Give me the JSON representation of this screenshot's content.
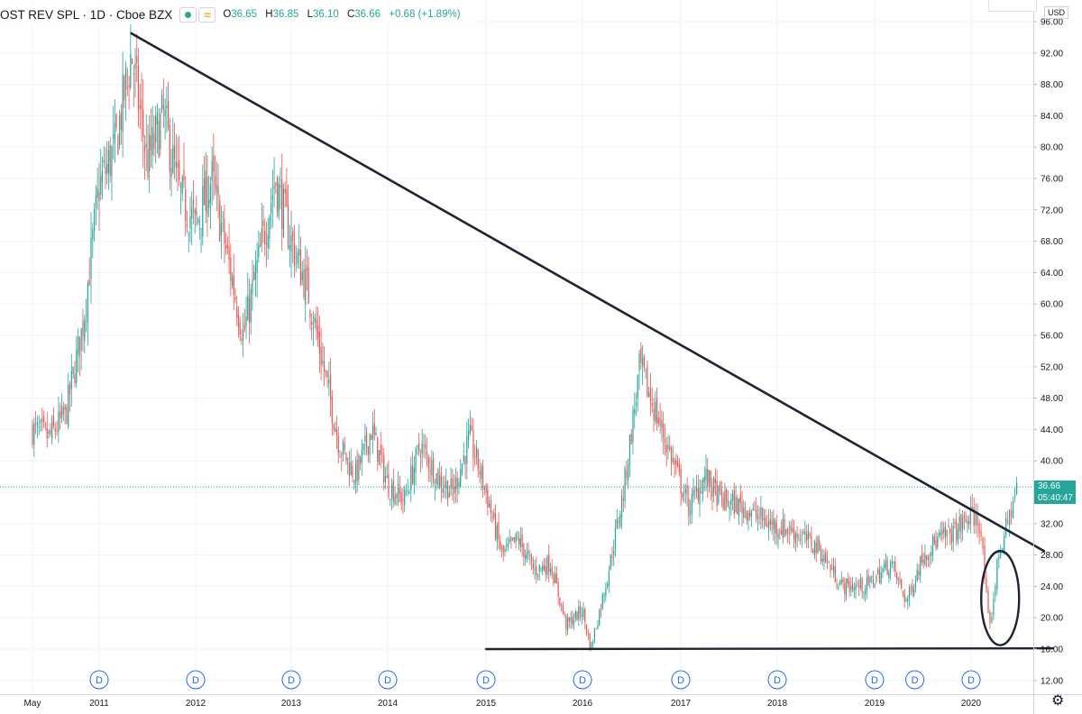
{
  "legend": {
    "symbol": "OST REV SPL · 1D · Cboe BZX",
    "open_label": "O",
    "open": "36.65",
    "high_label": "H",
    "high": "36.85",
    "low_label": "L",
    "low": "36.10",
    "close_label": "C",
    "close": "36.66",
    "change": "+0.68 (+1.89%)"
  },
  "price_axis": {
    "currency": "USD",
    "last_price": "36.66",
    "countdown": "05:40:47"
  },
  "icons": {
    "settings": "gear-icon",
    "indicator": "dot-icon",
    "compare": "waves-icon"
  },
  "colors": {
    "up": "#26a69a",
    "down": "#ef5350",
    "trendline": "#1e2433",
    "grid": "#f0f3fa",
    "accent": "#2962ff"
  },
  "chart_data": {
    "type": "candlestick",
    "title": "",
    "xlabel": "",
    "ylabel": "",
    "ylim": [
      12,
      98
    ],
    "x_ticks": [
      "May",
      "2011",
      "2012",
      "2013",
      "2014",
      "2015",
      "2016",
      "2017",
      "2018",
      "2019",
      "2020"
    ],
    "y_ticks": [
      "12.00",
      "16.00",
      "20.00",
      "24.00",
      "28.00",
      "32.00",
      "36.00",
      "40.00",
      "44.00",
      "48.00",
      "52.00",
      "56.00",
      "60.00",
      "64.00",
      "68.00",
      "72.00",
      "76.00",
      "80.00",
      "84.00",
      "88.00",
      "92.00",
      "96.00"
    ],
    "series": [
      {
        "values_close_approx": [
          {
            "date": "2010-05",
            "close": 44
          },
          {
            "date": "2010-07",
            "close": 43
          },
          {
            "date": "2010-09",
            "close": 46
          },
          {
            "date": "2010-11",
            "close": 57
          },
          {
            "date": "2011-01",
            "close": 75
          },
          {
            "date": "2011-03",
            "close": 80
          },
          {
            "date": "2011-05",
            "close": 92
          },
          {
            "date": "2011-07",
            "close": 78
          },
          {
            "date": "2011-09",
            "close": 84
          },
          {
            "date": "2011-11",
            "close": 74
          },
          {
            "date": "2012-01",
            "close": 70
          },
          {
            "date": "2012-03",
            "close": 76
          },
          {
            "date": "2012-05",
            "close": 66
          },
          {
            "date": "2012-07",
            "close": 56
          },
          {
            "date": "2012-09",
            "close": 66
          },
          {
            "date": "2012-11",
            "close": 76
          },
          {
            "date": "2013-01",
            "close": 68
          },
          {
            "date": "2013-03",
            "close": 62
          },
          {
            "date": "2013-05",
            "close": 52
          },
          {
            "date": "2013-07",
            "close": 42
          },
          {
            "date": "2013-09",
            "close": 38
          },
          {
            "date": "2013-11",
            "close": 44
          },
          {
            "date": "2014-01",
            "close": 37
          },
          {
            "date": "2014-03",
            "close": 35
          },
          {
            "date": "2014-05",
            "close": 42
          },
          {
            "date": "2014-07",
            "close": 38
          },
          {
            "date": "2014-09",
            "close": 36
          },
          {
            "date": "2014-11",
            "close": 43
          },
          {
            "date": "2015-01",
            "close": 36
          },
          {
            "date": "2015-03",
            "close": 28
          },
          {
            "date": "2015-05",
            "close": 30
          },
          {
            "date": "2015-07",
            "close": 26
          },
          {
            "date": "2015-09",
            "close": 27
          },
          {
            "date": "2015-11",
            "close": 19
          },
          {
            "date": "2016-01",
            "close": 21
          },
          {
            "date": "2016-02",
            "close": 16
          },
          {
            "date": "2016-04",
            "close": 25
          },
          {
            "date": "2016-06",
            "close": 36
          },
          {
            "date": "2016-08",
            "close": 52
          },
          {
            "date": "2016-10",
            "close": 46
          },
          {
            "date": "2016-12",
            "close": 40
          },
          {
            "date": "2017-02",
            "close": 34
          },
          {
            "date": "2017-04",
            "close": 38
          },
          {
            "date": "2017-06",
            "close": 35
          },
          {
            "date": "2017-09",
            "close": 34
          },
          {
            "date": "2017-12",
            "close": 32
          },
          {
            "date": "2018-03",
            "close": 31
          },
          {
            "date": "2018-06",
            "close": 29
          },
          {
            "date": "2018-09",
            "close": 24
          },
          {
            "date": "2018-12",
            "close": 24
          },
          {
            "date": "2019-03",
            "close": 27
          },
          {
            "date": "2019-05",
            "close": 22
          },
          {
            "date": "2019-07",
            "close": 28
          },
          {
            "date": "2019-09",
            "close": 30
          },
          {
            "date": "2019-11",
            "close": 31
          },
          {
            "date": "2020-01",
            "close": 33
          },
          {
            "date": "2020-02",
            "close": 32
          },
          {
            "date": "2020-03",
            "close": 18
          },
          {
            "date": "2020-04",
            "close": 28
          },
          {
            "date": "2020-05",
            "close": 32
          },
          {
            "date": "2020-06",
            "close": 36.66
          }
        ]
      }
    ],
    "annotations": {
      "trendline_resistance": {
        "from": {
          "date": "2011-05",
          "price": 94.5
        },
        "to": {
          "date": "2020-09",
          "price": 28.5
        }
      },
      "support_line": {
        "from": {
          "date": "2015-01",
          "price": 16
        },
        "to": {
          "date": "2020-09",
          "price": 16.1
        }
      },
      "ellipse": {
        "date": "2020-03",
        "price_low": 16.5,
        "price_high": 28.5
      },
      "last_price_line": 36.66,
      "dividend_markers": {
        "label": "D",
        "dates": [
          "2011-01",
          "2012-01",
          "2013-01",
          "2014-01",
          "2015-01",
          "2016-01",
          "2017-01",
          "2018-01",
          "2019-01",
          "2019-06",
          "2020-01"
        ]
      }
    },
    "grid": true,
    "legend_position": "top-left"
  }
}
